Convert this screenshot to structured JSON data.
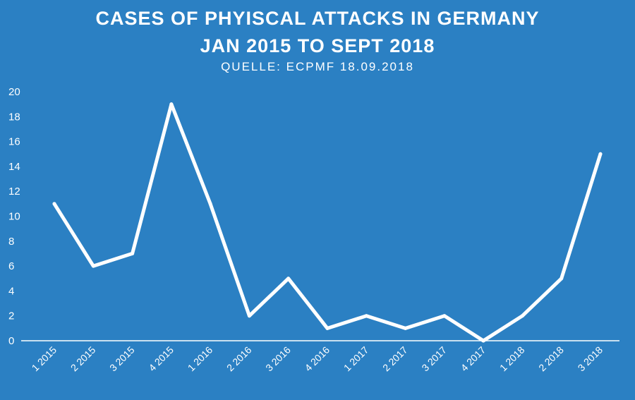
{
  "chart_data": {
    "type": "line",
    "title": "CASES OF PHYISCAL ATTACKS IN GERMANY",
    "subtitle": "JAN 2015 TO SEPT 2018",
    "source": "QUELLE: ECPMF 18.09.2018",
    "categories": [
      "1 2015",
      "2 2015",
      "3 2015",
      "4 2015",
      "1 2016",
      "2 2016",
      "3 2016",
      "4 2016",
      "1 2017",
      "2 2017",
      "3 2017",
      "4 2017",
      "1 2018",
      "2 2018",
      "3 2018"
    ],
    "values": [
      11,
      6,
      7,
      19,
      11,
      2,
      5,
      1,
      2,
      1,
      2,
      0,
      2,
      5,
      15
    ],
    "yticks": [
      0,
      2,
      4,
      6,
      8,
      10,
      12,
      14,
      16,
      18,
      20
    ],
    "ylim": [
      0,
      20
    ],
    "grid": false,
    "drop_lines": true,
    "colors": {
      "background": "#2b80c3",
      "line": "#ffffff"
    }
  }
}
